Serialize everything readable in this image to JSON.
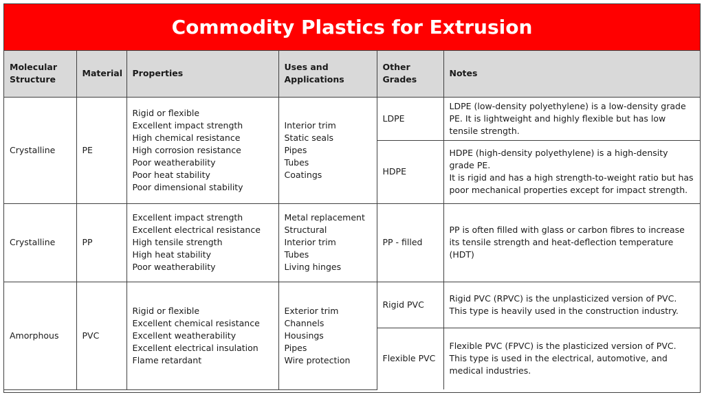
{
  "title": "Commodity Plastics for Extrusion",
  "headers": {
    "structure": "Molecular Structure",
    "material": "Material",
    "properties": "Properties",
    "uses": "Uses and Applications",
    "grades": "Other Grades",
    "notes": "Notes"
  },
  "rows": [
    {
      "structure": "Crystalline",
      "material": "PE",
      "properties": [
        "Rigid or flexible",
        "Excellent impact strength",
        "High chemical resistance",
        "High corrosion resistance",
        "Poor weatherability",
        "Poor heat stability",
        "Poor dimensional stability"
      ],
      "uses": [
        "Interior trim",
        "Static seals",
        "Pipes",
        "Tubes",
        "Coatings"
      ],
      "grades": [
        {
          "name": "LDPE",
          "notes": [
            "LDPE (low-density polyethylene) is a low-density grade PE. It is lightweight and highly flexible but has low tensile strength."
          ]
        },
        {
          "name": "HDPE",
          "notes": [
            "HDPE (high-density polyethylene) is a high-density grade PE.",
            "It is rigid and has a high strength-to-weight ratio but has poor mechanical properties except for impact strength."
          ]
        }
      ]
    },
    {
      "structure": "Crystalline",
      "material": "PP",
      "properties": [
        "Excellent impact strength",
        "Excellent electrical resistance",
        "High tensile strength",
        "High heat stability",
        "Poor weatherability"
      ],
      "uses": [
        "Metal replacement",
        "Structural",
        "Interior trim",
        "Tubes",
        "Living hinges"
      ],
      "grades": [
        {
          "name": "PP - filled",
          "notes": [
            "PP is often filled with glass or carbon fibres to increase its tensile strength and heat-deflection temperature (HDT)"
          ]
        }
      ]
    },
    {
      "structure": "Amorphous",
      "material": "PVC",
      "properties": [
        "Rigid or flexible",
        "Excellent chemical resistance",
        "Excellent weatherability",
        "Excellent electrical insulation",
        "Flame retardant"
      ],
      "uses": [
        "Exterior trim",
        "Channels",
        "Housings",
        "Pipes",
        "Wire protection"
      ],
      "grades": [
        {
          "name": "Rigid PVC",
          "notes": [
            "Rigid PVC (RPVC) is the unplasticized version of PVC. This type is heavily used in the construction industry."
          ]
        },
        {
          "name": "Flexible PVC",
          "notes": [
            "Flexible PVC (FPVC) is the plasticized version of PVC. This type is used in the electrical, automotive, and medical industries."
          ]
        }
      ]
    }
  ],
  "colors": {
    "title_bg": "#ff0000",
    "header_bg": "#d9d9d9",
    "border": "#404040"
  }
}
